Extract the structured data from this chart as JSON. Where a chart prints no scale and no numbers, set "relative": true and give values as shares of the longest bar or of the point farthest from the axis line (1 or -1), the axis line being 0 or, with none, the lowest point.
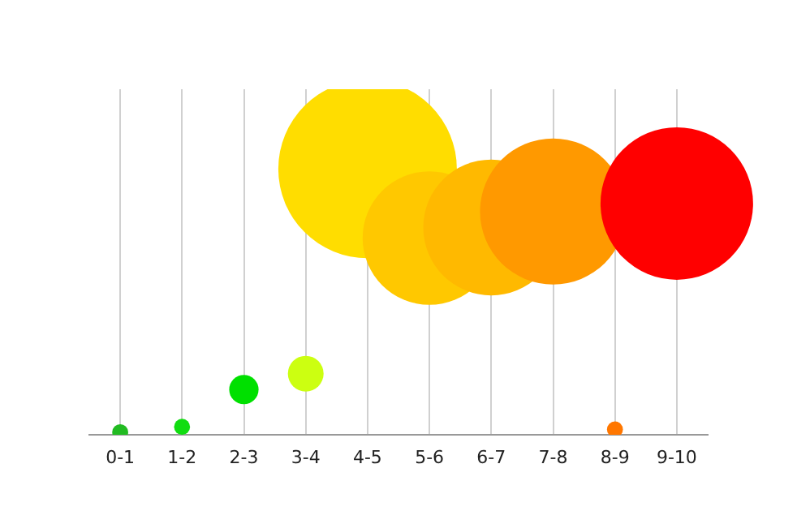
{
  "chart_data": {
    "type": "bubble",
    "categories": [
      "0-1",
      "1-2",
      "2-3",
      "3-4",
      "4-5",
      "5-6",
      "6-7",
      "7-8",
      "8-9",
      "9-10"
    ],
    "values": [
      0.01,
      0.03,
      0.17,
      0.23,
      1,
      0.74,
      0.78,
      0.84,
      0.02,
      0.87
    ],
    "sizes": [
      0.008,
      0.008,
      0.027,
      0.04,
      1,
      0.56,
      0.58,
      0.67,
      0.008,
      0.73
    ],
    "colors": [
      "#22bb22",
      "#11dd11",
      "#00e000",
      "#ccff11",
      "#ffdd00",
      "#ffc800",
      "#ffb900",
      "#ff9900",
      "#ff7700",
      "#ff0000"
    ],
    "relative": true,
    "grid": "x",
    "legend": false
  }
}
